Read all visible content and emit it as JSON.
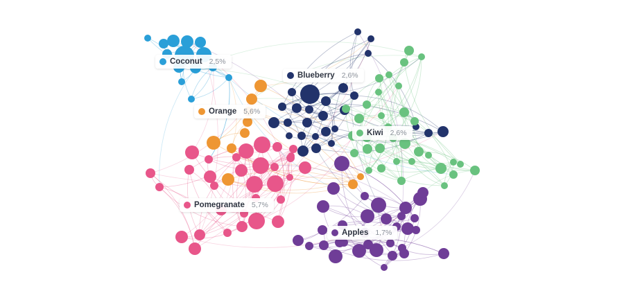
{
  "clusters": {
    "coconut": {
      "name": "Coconut",
      "percent": "2,5%",
      "color": "#2a9fd8"
    },
    "blueberry": {
      "name": "Blueberry",
      "percent": "2,6%",
      "color": "#22336b"
    },
    "orange": {
      "name": "Orange",
      "percent": "5,6%",
      "color": "#ee9633"
    },
    "kiwi": {
      "name": "Kiwi",
      "percent": "2,6%",
      "color": "#69c27f"
    },
    "pomegranate": {
      "name": "Pomegranate",
      "percent": "5,7%",
      "color": "#e8568a"
    },
    "apples": {
      "name": "Apples",
      "percent": "1,7%",
      "color": "#6f3d97"
    }
  },
  "background_color": "#ffffff"
}
